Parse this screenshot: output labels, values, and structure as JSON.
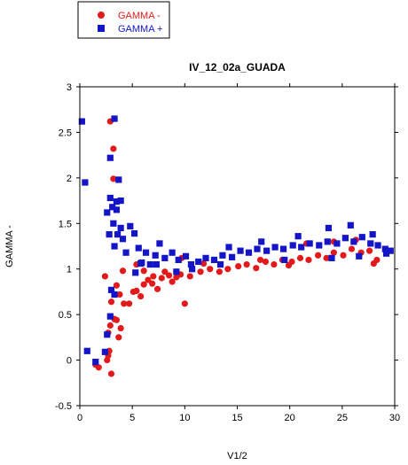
{
  "chart_data": {
    "type": "scatter",
    "title": "IV_12_02a_GUADA",
    "xlabel": "V1/2",
    "ylabel": "GAMMA -",
    "xlim": [
      0,
      30
    ],
    "ylim": [
      -0.5,
      3
    ],
    "x_ticks": [
      0,
      5,
      10,
      15,
      20,
      25,
      30
    ],
    "y_ticks": [
      -0.5,
      0,
      0.5,
      1,
      1.5,
      2,
      2.5,
      3
    ],
    "grid": false,
    "legend": "outside-top-left",
    "series": [
      {
        "name": "GAMMA -",
        "marker": "circle",
        "color": "#e31a1c",
        "points": [
          [
            1.5,
            -0.05
          ],
          [
            1.8,
            -0.08
          ],
          [
            2.6,
            0.0
          ],
          [
            2.7,
            0.3
          ],
          [
            2.8,
            0.1
          ],
          [
            3.0,
            -0.15
          ],
          [
            2.7,
            0.05
          ],
          [
            2.9,
            0.38
          ],
          [
            3.3,
            0.45
          ],
          [
            3.5,
            0.44
          ],
          [
            3.9,
            0.35
          ],
          [
            3.7,
            0.25
          ],
          [
            2.4,
            0.92
          ],
          [
            3.0,
            0.64
          ],
          [
            3.5,
            0.82
          ],
          [
            3.8,
            0.72
          ],
          [
            4.2,
            0.62
          ],
          [
            4.7,
            0.62
          ],
          [
            4.1,
            0.98
          ],
          [
            5.1,
            0.75
          ],
          [
            5.4,
            0.76
          ],
          [
            5.8,
            0.7
          ],
          [
            5.4,
            1.05
          ],
          [
            6.1,
            0.83
          ],
          [
            6.5,
            0.88
          ],
          [
            6.9,
            0.84
          ],
          [
            7.4,
            0.78
          ],
          [
            7.8,
            0.9
          ],
          [
            8.5,
            0.93
          ],
          [
            9.2,
            0.91
          ],
          [
            10.0,
            0.62
          ],
          [
            6.1,
            0.98
          ],
          [
            7.0,
            0.92
          ],
          [
            8.1,
            0.97
          ],
          [
            8.8,
            0.86
          ],
          [
            9.6,
            0.94
          ],
          [
            10.5,
            0.92
          ],
          [
            11.5,
            0.97
          ],
          [
            12.4,
            1.0
          ],
          [
            13.3,
            0.97
          ],
          [
            14.1,
            1.0
          ],
          [
            15.1,
            1.03
          ],
          [
            15.9,
            1.05
          ],
          [
            16.8,
            1.01
          ],
          [
            17.7,
            1.08
          ],
          [
            18.5,
            1.05
          ],
          [
            19.3,
            1.1
          ],
          [
            20.2,
            1.08
          ],
          [
            21.0,
            1.12
          ],
          [
            21.8,
            1.1
          ],
          [
            22.7,
            1.15
          ],
          [
            23.5,
            1.12
          ],
          [
            24.2,
            1.18
          ],
          [
            25.1,
            1.15
          ],
          [
            25.9,
            1.22
          ],
          [
            26.8,
            1.18
          ],
          [
            27.6,
            1.2
          ],
          [
            28.3,
            1.1
          ],
          [
            21.6,
            1.28
          ],
          [
            24.2,
            1.3
          ],
          [
            26.3,
            1.32
          ],
          [
            28.0,
            1.06
          ],
          [
            11.8,
            1.06
          ],
          [
            17.2,
            1.1
          ],
          [
            19.9,
            1.04
          ],
          [
            9.7,
            1.12
          ],
          [
            2.9,
            2.62
          ],
          [
            3.2,
            2.32
          ],
          [
            3.2,
            1.99
          ]
        ]
      },
      {
        "name": "GAMMA +",
        "marker": "square",
        "color": "#1515c8",
        "points": [
          [
            0.2,
            2.62
          ],
          [
            0.5,
            1.95
          ],
          [
            0.7,
            0.1
          ],
          [
            1.5,
            -0.02
          ],
          [
            2.4,
            0.09
          ],
          [
            2.6,
            0.28
          ],
          [
            2.9,
            0.48
          ],
          [
            3.0,
            0.77
          ],
          [
            3.3,
            0.72
          ],
          [
            2.6,
            1.62
          ],
          [
            2.9,
            1.78
          ],
          [
            3.2,
            1.5
          ],
          [
            3.1,
            1.68
          ],
          [
            3.5,
            1.65
          ],
          [
            3.3,
            1.25
          ],
          [
            3.6,
            1.38
          ],
          [
            3.9,
            1.45
          ],
          [
            4.1,
            1.33
          ],
          [
            4.4,
            1.18
          ],
          [
            4.8,
            1.47
          ],
          [
            5.2,
            1.39
          ],
          [
            5.6,
            1.23
          ],
          [
            5.3,
            0.96
          ],
          [
            5.9,
            1.07
          ],
          [
            6.3,
            1.18
          ],
          [
            6.7,
            1.05
          ],
          [
            7.2,
            1.15
          ],
          [
            7.6,
            1.28
          ],
          [
            8.1,
            1.12
          ],
          [
            8.8,
            1.18
          ],
          [
            9.4,
            1.1
          ],
          [
            10.1,
            1.14
          ],
          [
            10.6,
            1.05
          ],
          [
            11.3,
            1.08
          ],
          [
            12.0,
            1.12
          ],
          [
            12.8,
            1.1
          ],
          [
            13.6,
            1.15
          ],
          [
            14.5,
            1.13
          ],
          [
            15.3,
            1.2
          ],
          [
            16.1,
            1.18
          ],
          [
            16.9,
            1.22
          ],
          [
            17.8,
            1.2
          ],
          [
            18.6,
            1.24
          ],
          [
            19.4,
            1.22
          ],
          [
            20.3,
            1.26
          ],
          [
            21.1,
            1.24
          ],
          [
            21.9,
            1.28
          ],
          [
            22.8,
            1.26
          ],
          [
            23.6,
            1.3
          ],
          [
            24.5,
            1.28
          ],
          [
            25.3,
            1.34
          ],
          [
            26.1,
            1.3
          ],
          [
            26.9,
            1.35
          ],
          [
            27.7,
            1.28
          ],
          [
            28.4,
            1.26
          ],
          [
            29.1,
            1.22
          ],
          [
            29.6,
            1.2
          ],
          [
            23.7,
            1.45
          ],
          [
            25.8,
            1.48
          ],
          [
            20.8,
            1.36
          ],
          [
            17.3,
            1.3
          ],
          [
            14.2,
            1.24
          ],
          [
            27.9,
            1.38
          ],
          [
            26.6,
            1.14
          ],
          [
            24.0,
            1.12
          ],
          [
            29.2,
            1.17
          ],
          [
            2.9,
            2.22
          ],
          [
            3.3,
            2.65
          ],
          [
            3.7,
            1.98
          ],
          [
            3.9,
            1.75
          ],
          [
            3.5,
            1.74
          ],
          [
            2.8,
            1.38
          ],
          [
            5.8,
            1.06
          ],
          [
            10.7,
            1.0
          ],
          [
            7.3,
            1.05
          ],
          [
            9.2,
            0.97
          ],
          [
            13.4,
            1.05
          ],
          [
            19.5,
            1.1
          ]
        ]
      }
    ]
  }
}
